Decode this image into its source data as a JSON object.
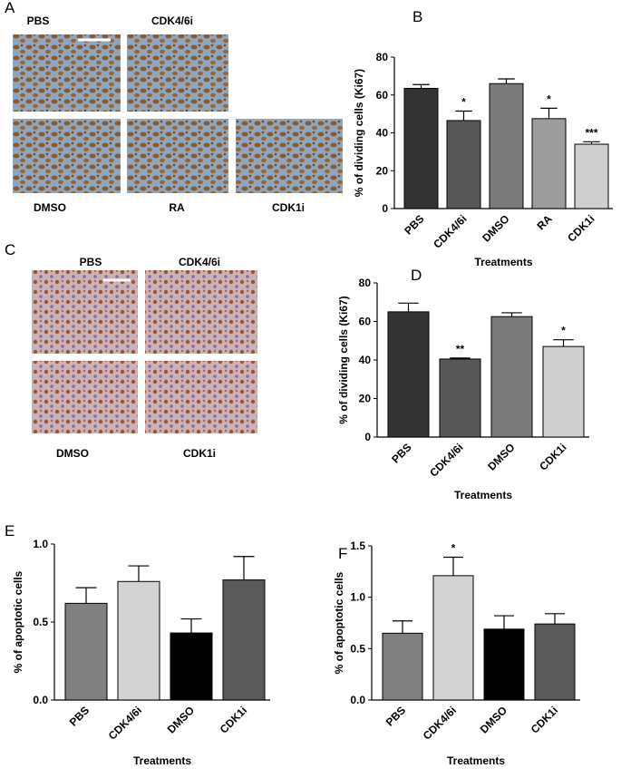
{
  "panel_labels": [
    "A",
    "B",
    "C",
    "D",
    "E",
    "F"
  ],
  "micrographs": {
    "A": [
      "PBS",
      "CDK4/6i",
      "DMSO",
      "RA",
      "CDK1i"
    ],
    "C": [
      "PBS",
      "CDK4/6i",
      "DMSO",
      "CDK1i"
    ]
  },
  "chart_data": [
    {
      "type": "bar",
      "y_label": "% of dividing cells (Ki67)",
      "x_label": "Treatments",
      "categories": [
        "PBS",
        "CDK4/6i",
        "DMSO",
        "RA",
        "CDK1i"
      ],
      "values": [
        63.5,
        46.5,
        66,
        47.5,
        34
      ],
      "errors": [
        2,
        5,
        2.5,
        5.5,
        1.3
      ],
      "colors": [
        "#333333",
        "#575757",
        "#7a7a7a",
        "#9c9c9c",
        "#cfcfcf"
      ],
      "annotations": [
        null,
        "*",
        null,
        "*",
        "***"
      ],
      "ylim": [
        0,
        80
      ],
      "yticks": [
        0,
        20,
        40,
        60,
        80
      ]
    },
    {
      "type": "bar",
      "y_label": "% of dividing cells (Ki67)",
      "x_label": "Treatments",
      "categories": [
        "PBS",
        "CDK4/6i",
        "DMSO",
        "CDK1i"
      ],
      "values": [
        65,
        40.5,
        62.5,
        47
      ],
      "errors": [
        4.5,
        0.5,
        2,
        3.5
      ],
      "colors": [
        "#333333",
        "#575757",
        "#7a7a7a",
        "#cfcfcf"
      ],
      "annotations": [
        null,
        "**",
        null,
        "*"
      ],
      "ylim": [
        0,
        80
      ],
      "yticks": [
        0,
        20,
        40,
        60,
        80
      ]
    },
    {
      "type": "bar",
      "y_label": "% of apoptotic cells",
      "x_label": "Treatments",
      "categories": [
        "PBS",
        "CDK4/6i",
        "DMSO",
        "CDK1i"
      ],
      "values": [
        0.62,
        0.76,
        0.43,
        0.77
      ],
      "errors": [
        0.1,
        0.1,
        0.09,
        0.15
      ],
      "colors": [
        "#808080",
        "#d3d3d3",
        "#000000",
        "#5a5a5a"
      ],
      "annotations": [
        null,
        null,
        null,
        null
      ],
      "ylim": [
        0,
        1.0
      ],
      "yticks": [
        {
          "value": 0,
          "label": "0.0"
        },
        {
          "value": 0.5,
          "label": "0.5"
        },
        {
          "value": 1.0,
          "label": "1.0"
        }
      ]
    },
    {
      "type": "bar",
      "y_label": "% of apoptotic cells",
      "x_label": "Treatments",
      "categories": [
        "PBS",
        "CDK4/6i",
        "DMSO",
        "CDK1i"
      ],
      "values": [
        0.65,
        1.21,
        0.69,
        0.74
      ],
      "errors": [
        0.12,
        0.18,
        0.13,
        0.1
      ],
      "colors": [
        "#808080",
        "#d3d3d3",
        "#000000",
        "#5a5a5a"
      ],
      "annotations": [
        null,
        "*",
        null,
        null
      ],
      "ylim": [
        0,
        1.5
      ],
      "yticks": [
        {
          "value": 0,
          "label": "0.0"
        },
        {
          "value": 0.5,
          "label": "0.5"
        },
        {
          "value": 1.0,
          "label": "1.0"
        },
        {
          "value": 1.5,
          "label": "1.5"
        }
      ]
    }
  ]
}
